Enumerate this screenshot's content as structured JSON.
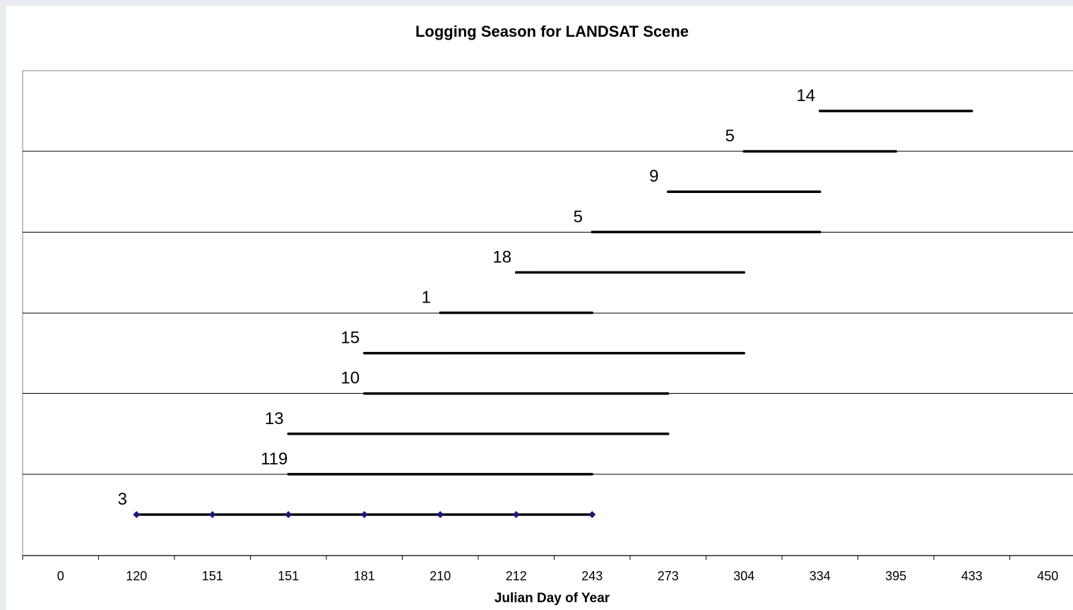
{
  "chart_data": {
    "type": "bar",
    "orientation": "horizontal-range",
    "title": "Logging Season for LANDSAT Scene",
    "xlabel": "Julian Day of Year",
    "ylabel": "",
    "x_tick_labels": [
      "0",
      "120",
      "151",
      "151",
      "181",
      "210",
      "212",
      "243",
      "273",
      "304",
      "334",
      "395",
      "433",
      "450"
    ],
    "grid": "horizontal-every-second-row",
    "legend": "none",
    "series": [
      {
        "label": "3",
        "start_tick": 1,
        "end_tick": 7,
        "markers": true
      },
      {
        "label": "119",
        "start_tick": 3,
        "end_tick": 7
      },
      {
        "label": "13",
        "start_tick": 3,
        "end_tick": 8
      },
      {
        "label": "10",
        "start_tick": 4,
        "end_tick": 8
      },
      {
        "label": "15",
        "start_tick": 4,
        "end_tick": 9
      },
      {
        "label": "1",
        "start_tick": 5,
        "end_tick": 7
      },
      {
        "label": "18",
        "start_tick": 6,
        "end_tick": 9
      },
      {
        "label": "5",
        "start_tick": 7,
        "end_tick": 10
      },
      {
        "label": "9",
        "start_tick": 8,
        "end_tick": 10
      },
      {
        "label": "5",
        "start_tick": 9,
        "end_tick": 11
      },
      {
        "label": "14",
        "start_tick": 10,
        "end_tick": 12
      }
    ],
    "colors": {
      "bar": "#000000",
      "marker": "#1a1a7a",
      "grid": "#000000",
      "background": "#ffffff"
    }
  }
}
